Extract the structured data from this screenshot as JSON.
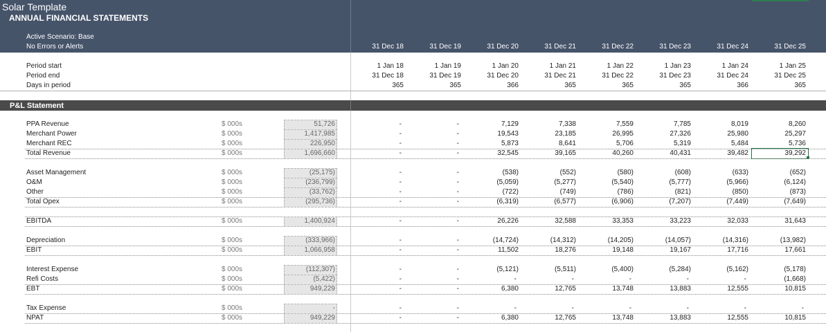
{
  "header": {
    "app_title": "Solar Template",
    "title": "ANNUAL FINANCIAL STATEMENTS",
    "scenario": "Active Scenario: Base",
    "alerts": "No Errors or Alerts",
    "period_columns": [
      "31 Dec 18",
      "31 Dec 19",
      "31 Dec 20",
      "31 Dec 21",
      "31 Dec 22",
      "31 Dec 23",
      "31 Dec 24",
      "31 Dec 25"
    ]
  },
  "timing": {
    "rows": [
      {
        "label": "Period start",
        "values": [
          "1 Jan 18",
          "1 Jan 19",
          "1 Jan 20",
          "1 Jan 21",
          "1 Jan 22",
          "1 Jan 23",
          "1 Jan 24",
          "1 Jan 25"
        ]
      },
      {
        "label": "Period end",
        "values": [
          "31 Dec 18",
          "31 Dec 19",
          "31 Dec 20",
          "31 Dec 21",
          "31 Dec 22",
          "31 Dec 23",
          "31 Dec 24",
          "31 Dec 25"
        ]
      },
      {
        "label": "Days in period",
        "values": [
          "365",
          "365",
          "366",
          "365",
          "365",
          "365",
          "366",
          "365"
        ]
      }
    ]
  },
  "section": {
    "title": "P&L Statement",
    "groups": [
      [
        {
          "label": "PPA Revenue",
          "unit": "$ 000s",
          "total": "51,726",
          "values": [
            "-",
            "-",
            "7,129",
            "7,338",
            "7,559",
            "7,785",
            "8,019",
            "8,260"
          ]
        },
        {
          "label": "Merchant Power",
          "unit": "$ 000s",
          "total": "1,417,985",
          "values": [
            "-",
            "-",
            "19,543",
            "23,185",
            "26,995",
            "27,326",
            "25,980",
            "25,297"
          ]
        },
        {
          "label": "Merchant REC",
          "unit": "$ 000s",
          "total": "226,950",
          "values": [
            "-",
            "-",
            "5,873",
            "8,641",
            "5,706",
            "5,319",
            "5,484",
            "5,736"
          ]
        },
        {
          "label": "Total Revenue",
          "unit": "$ 000s",
          "total": "1,696,660",
          "values": [
            "-",
            "-",
            "32,545",
            "39,165",
            "40,260",
            "40,431",
            "39,482",
            "39,292"
          ]
        }
      ],
      [
        {
          "label": "Asset Management",
          "unit": "$ 000s",
          "total": "(25,175)",
          "values": [
            "-",
            "-",
            "(538)",
            "(552)",
            "(580)",
            "(608)",
            "(633)",
            "(652)"
          ]
        },
        {
          "label": "O&M",
          "unit": "$ 000s",
          "total": "(236,799)",
          "values": [
            "-",
            "-",
            "(5,059)",
            "(5,277)",
            "(5,540)",
            "(5,777)",
            "(5,966)",
            "(6,124)"
          ]
        },
        {
          "label": "Other",
          "unit": "$ 000s",
          "total": "(33,762)",
          "values": [
            "-",
            "-",
            "(722)",
            "(749)",
            "(786)",
            "(821)",
            "(850)",
            "(873)"
          ]
        },
        {
          "label": "Total Opex",
          "unit": "$ 000s",
          "total": "(295,736)",
          "values": [
            "-",
            "-",
            "(6,319)",
            "(6,577)",
            "(6,906)",
            "(7,207)",
            "(7,449)",
            "(7,649)"
          ]
        }
      ],
      [
        {
          "label": "EBITDA",
          "unit": "$ 000s",
          "total": "1,400,924",
          "values": [
            "-",
            "-",
            "26,226",
            "32,588",
            "33,353",
            "33,223",
            "32,033",
            "31,643"
          ]
        }
      ],
      [
        {
          "label": "Depreciation",
          "unit": "$ 000s",
          "total": "(333,966)",
          "values": [
            "-",
            "-",
            "(14,724)",
            "(14,312)",
            "(14,205)",
            "(14,057)",
            "(14,316)",
            "(13,982)"
          ]
        },
        {
          "label": "EBIT",
          "unit": "$ 000s",
          "total": "1,066,958",
          "values": [
            "-",
            "-",
            "11,502",
            "18,276",
            "19,148",
            "19,167",
            "17,716",
            "17,661"
          ]
        }
      ],
      [
        {
          "label": "Interest Expense",
          "unit": "$ 000s",
          "total": "(112,307)",
          "values": [
            "-",
            "-",
            "(5,121)",
            "(5,511)",
            "(5,400)",
            "(5,284)",
            "(5,162)",
            "(5,178)"
          ]
        },
        {
          "label": "Refi Costs",
          "unit": "$ 000s",
          "total": "(5,422)",
          "values": [
            "-",
            "-",
            "-",
            "-",
            "-",
            "-",
            "-",
            "(1,668)"
          ]
        },
        {
          "label": "EBT",
          "unit": "$ 000s",
          "total": "949,229",
          "values": [
            "-",
            "-",
            "6,380",
            "12,765",
            "13,748",
            "13,883",
            "12,555",
            "10,815"
          ]
        }
      ],
      [
        {
          "label": "Tax Expense",
          "unit": "$ 000s",
          "total": "-",
          "values": [
            "-",
            "-",
            "-",
            "-",
            "-",
            "-",
            "-",
            "-"
          ]
        },
        {
          "label": "NPAT",
          "unit": "$ 000s",
          "total": "949,229",
          "values": [
            "-",
            "-",
            "6,380",
            "12,765",
            "13,748",
            "13,883",
            "12,555",
            "10,815"
          ]
        }
      ]
    ]
  }
}
